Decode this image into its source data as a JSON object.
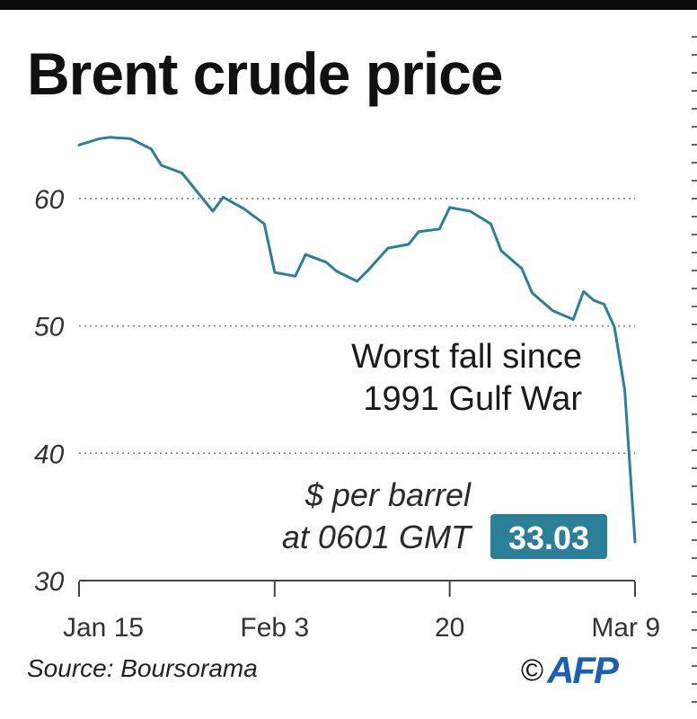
{
  "title": "Brent crude price",
  "colors": {
    "line": "#2b7f98",
    "badge": "#2b7f98",
    "grid": "#777777",
    "axis": "#444444"
  },
  "chart_data": {
    "type": "line",
    "title": "Brent crude price",
    "ylim": [
      30,
      65
    ],
    "yticks": [
      30,
      40,
      50,
      60
    ],
    "ytick_labels": [
      "30",
      "40",
      "50",
      "60"
    ],
    "gridlines_at": [
      40,
      50,
      60
    ],
    "grid": true,
    "x_range": [
      "2020-01-15",
      "2020-03-09"
    ],
    "xticks": [
      "2020-01-15",
      "2020-02-03",
      "2020-02-20",
      "2020-03-09"
    ],
    "xtick_labels": [
      "Jan 15",
      "Feb 3",
      "20",
      "Mar 9"
    ],
    "series": [
      {
        "x": [
          "2020-01-15",
          "2020-01-17",
          "2020-01-18",
          "2020-01-20",
          "2020-01-22",
          "2020-01-23",
          "2020-01-25",
          "2020-01-26",
          "2020-01-28",
          "2020-01-29",
          "2020-01-31",
          "2020-02-02",
          "2020-02-03",
          "2020-02-05",
          "2020-02-06",
          "2020-02-08",
          "2020-02-09",
          "2020-02-11",
          "2020-02-12",
          "2020-02-14",
          "2020-02-16",
          "2020-02-17",
          "2020-02-19",
          "2020-02-20",
          "2020-02-22",
          "2020-02-24",
          "2020-02-25",
          "2020-02-27",
          "2020-02-28",
          "2020-03-01",
          "2020-03-03",
          "2020-03-04",
          "2020-03-05",
          "2020-03-06",
          "2020-03-07",
          "2020-03-08",
          "2020-03-09"
        ],
        "y": [
          64.2,
          64.7,
          64.8,
          64.7,
          63.9,
          62.6,
          62.0,
          61.0,
          59.0,
          60.1,
          59.2,
          58.0,
          54.2,
          53.9,
          55.6,
          55.0,
          54.3,
          53.5,
          54.3,
          56.1,
          56.4,
          57.4,
          57.6,
          59.3,
          59.0,
          58.0,
          55.9,
          54.5,
          52.6,
          51.2,
          50.5,
          52.7,
          52.0,
          51.7,
          49.9,
          45.0,
          33.03
        ]
      }
    ],
    "annotations": {
      "line1": "Worst fall since",
      "line2": "1991 Gulf War"
    },
    "unit_label": {
      "line1": "$ per barrel",
      "line2": "at 0601 GMT"
    },
    "last_value_label": "33.03"
  },
  "footer": {
    "source": "Source: Boursorama",
    "copyright": "©",
    "logo": "AFP"
  }
}
